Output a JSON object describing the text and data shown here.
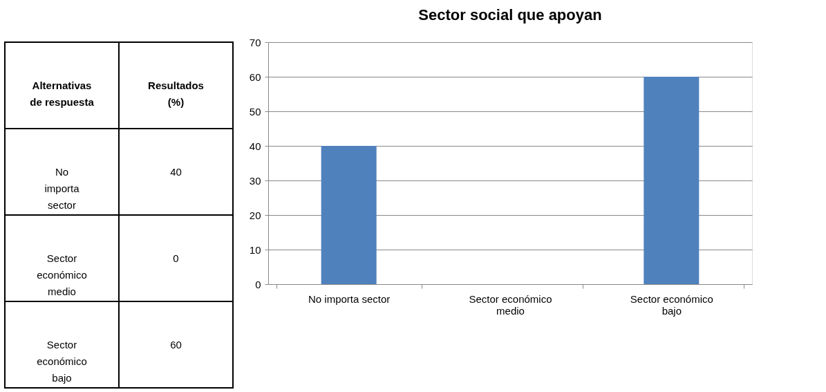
{
  "chart_data": [
    {
      "type": "other",
      "annotations": [
        "Alternativas de respuesta",
        "Resultados (%)"
      ],
      "categories": [
        "No importa sector",
        "Sector económico medio",
        "Sector económico bajo"
      ],
      "values": [
        40,
        0,
        60
      ],
      "data_labels": true
    },
    {
      "type": "bar",
      "title": "Sector social que apoyan",
      "categories": [
        "No importa sector",
        "Sector económico medio",
        "Sector económico bajo"
      ],
      "values": [
        40,
        0,
        60
      ],
      "color": "#4f81bd",
      "ylim": [
        0,
        70
      ],
      "yticks": [
        0,
        10,
        20,
        30,
        40,
        50,
        60,
        70
      ],
      "grid": "y"
    }
  ]
}
